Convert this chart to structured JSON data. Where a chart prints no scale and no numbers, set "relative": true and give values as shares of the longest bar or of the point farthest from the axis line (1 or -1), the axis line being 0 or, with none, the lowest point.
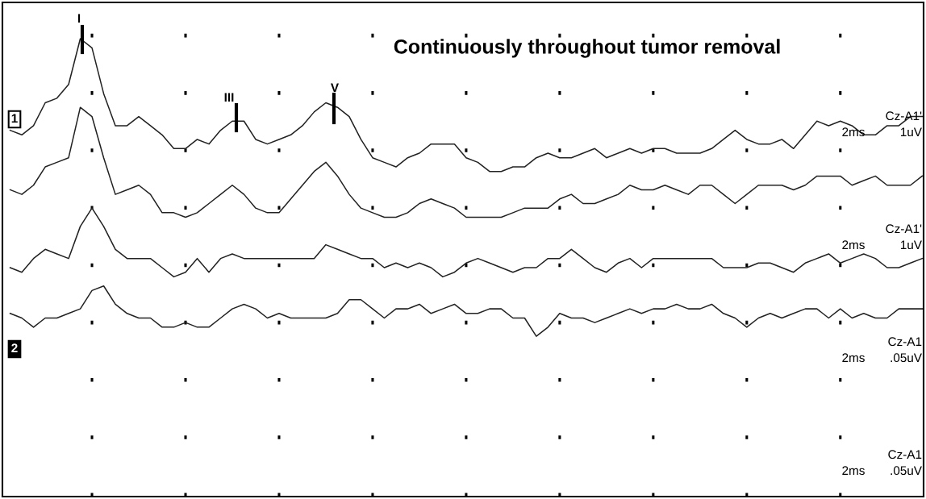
{
  "chart_data": {
    "type": "line",
    "title": "Continuously throughout tumor removal",
    "relative": true,
    "marker": "none",
    "line_style": "solid",
    "grid": "x",
    "categories": [
      null,
      null,
      null,
      null,
      null,
      null,
      null,
      null,
      null,
      null,
      null,
      null,
      null,
      null,
      null,
      null,
      null,
      null,
      null,
      null,
      null,
      null,
      null,
      null,
      null,
      null,
      null,
      null,
      null,
      null,
      null,
      null,
      null,
      null,
      null,
      null,
      null,
      null,
      null,
      null,
      null,
      null,
      null,
      null,
      null,
      null,
      null,
      null,
      null,
      null,
      null,
      null,
      null,
      null,
      null,
      null,
      null,
      null,
      null,
      null,
      null,
      null,
      null,
      null,
      null,
      null,
      null,
      null,
      null,
      null,
      null,
      null,
      null,
      null,
      null,
      null,
      null,
      null,
      null
    ],
    "annotations": [
      "I",
      "III",
      "V",
      "Cz-A1'",
      "2ms",
      "1uV",
      "Cz-A1'",
      "2ms",
      "1uV",
      "Cz-A1",
      "2ms",
      ".05uV",
      "Cz-A1",
      "2ms",
      ".05uV",
      "1",
      "2"
    ],
    "series": [
      {
        "color": "#222222",
        "values": [
          0.8,
          0.79,
          0.81,
          0.86,
          0.87,
          0.9,
          1.0,
          0.98,
          0.88,
          0.81,
          0.81,
          0.83,
          0.81,
          0.79,
          0.76,
          0.76,
          0.78,
          0.77,
          0.8,
          0.82,
          0.82,
          0.78,
          0.77,
          0.78,
          0.79,
          0.81,
          0.84,
          0.86,
          0.85,
          0.83,
          0.78,
          0.74,
          0.73,
          0.72,
          0.74,
          0.75,
          0.77,
          0.77,
          0.77,
          0.74,
          0.73,
          0.71,
          0.71,
          0.72,
          0.72,
          0.74,
          0.75,
          0.74,
          0.74,
          0.75,
          0.76,
          0.74,
          0.75,
          0.76,
          0.75,
          0.76,
          0.76,
          0.75,
          0.75,
          0.75,
          0.76,
          0.78,
          0.8,
          0.78,
          0.77,
          0.77,
          0.78,
          0.76,
          0.79,
          0.82,
          0.81,
          0.82,
          0.81,
          0.79,
          0.79,
          0.81,
          0.81,
          0.83,
          0.83
        ]
      },
      {
        "color": "#222222",
        "values": [
          0.67,
          0.66,
          0.68,
          0.72,
          0.73,
          0.74,
          0.85,
          0.83,
          0.74,
          0.66,
          0.67,
          0.68,
          0.66,
          0.62,
          0.62,
          0.61,
          0.62,
          0.64,
          0.66,
          0.68,
          0.66,
          0.63,
          0.62,
          0.62,
          0.65,
          0.68,
          0.71,
          0.73,
          0.7,
          0.66,
          0.63,
          0.62,
          0.61,
          0.61,
          0.62,
          0.64,
          0.65,
          0.64,
          0.63,
          0.61,
          0.61,
          0.61,
          0.61,
          0.62,
          0.63,
          0.63,
          0.63,
          0.65,
          0.66,
          0.64,
          0.64,
          0.65,
          0.66,
          0.68,
          0.67,
          0.67,
          0.68,
          0.67,
          0.66,
          0.68,
          0.68,
          0.66,
          0.64,
          0.66,
          0.68,
          0.68,
          0.68,
          0.67,
          0.68,
          0.7,
          0.7,
          0.7,
          0.68,
          0.69,
          0.7,
          0.68,
          0.68,
          0.68,
          0.7
        ]
      },
      {
        "color": "#222222",
        "values": [
          0.5,
          0.49,
          0.52,
          0.54,
          0.53,
          0.52,
          0.59,
          0.63,
          0.59,
          0.54,
          0.52,
          0.52,
          0.52,
          0.5,
          0.48,
          0.49,
          0.52,
          0.49,
          0.52,
          0.53,
          0.52,
          0.52,
          0.52,
          0.52,
          0.52,
          0.52,
          0.52,
          0.55,
          0.54,
          0.53,
          0.52,
          0.52,
          0.5,
          0.51,
          0.5,
          0.51,
          0.5,
          0.48,
          0.49,
          0.51,
          0.52,
          0.51,
          0.5,
          0.49,
          0.5,
          0.5,
          0.52,
          0.52,
          0.54,
          0.52,
          0.5,
          0.49,
          0.51,
          0.52,
          0.5,
          0.52,
          0.52,
          0.52,
          0.52,
          0.52,
          0.52,
          0.5,
          0.5,
          0.5,
          0.51,
          0.51,
          0.5,
          0.49,
          0.51,
          0.52,
          0.53,
          0.51,
          0.52,
          0.53,
          0.52,
          0.5,
          0.5,
          0.51,
          0.52
        ]
      },
      {
        "color": "#222222",
        "values": [
          0.4,
          0.39,
          0.37,
          0.39,
          0.39,
          0.4,
          0.41,
          0.45,
          0.46,
          0.42,
          0.4,
          0.39,
          0.39,
          0.37,
          0.37,
          0.38,
          0.37,
          0.37,
          0.39,
          0.41,
          0.42,
          0.41,
          0.39,
          0.4,
          0.39,
          0.39,
          0.39,
          0.39,
          0.4,
          0.43,
          0.43,
          0.41,
          0.39,
          0.41,
          0.41,
          0.42,
          0.4,
          0.41,
          0.42,
          0.4,
          0.4,
          0.41,
          0.41,
          0.39,
          0.39,
          0.35,
          0.37,
          0.4,
          0.39,
          0.39,
          0.38,
          0.39,
          0.4,
          0.41,
          0.4,
          0.41,
          0.41,
          0.42,
          0.41,
          0.41,
          0.42,
          0.4,
          0.39,
          0.37,
          0.39,
          0.4,
          0.39,
          0.4,
          0.41,
          0.41,
          0.39,
          0.41,
          0.39,
          0.4,
          0.39,
          0.39,
          0.41,
          0.41,
          0.41
        ]
      }
    ]
  }
}
